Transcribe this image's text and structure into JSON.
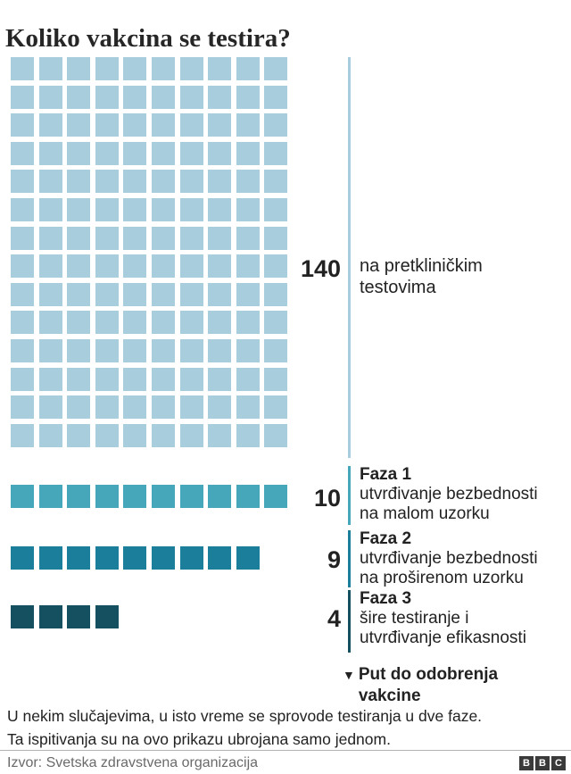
{
  "title": "Koliko vakcina se testira?",
  "colors": {
    "preclinical": "#a8cedd",
    "phase1": "#47a7ba",
    "phase2": "#1b7f9c",
    "phase3": "#14505f",
    "text": "#222222",
    "source_text": "#6a6a6a",
    "divider": "#b3b3b3",
    "logo_block": "#3a3a3a"
  },
  "chart_data": {
    "type": "waffle",
    "title": "Koliko vakcina se testira?",
    "unit": "broj vakcina",
    "columns": 10,
    "legend_position": "right",
    "groups": [
      {
        "id": "preclinical",
        "count": 140,
        "color": "#a8cedd",
        "label_lines": [
          "na pretkliničkim",
          "testovima"
        ]
      },
      {
        "id": "phase1",
        "count": 10,
        "color": "#47a7ba",
        "phase": "Faza 1",
        "desc_lines": [
          "utvrđivanje bezbednosti",
          "na malom uzorku"
        ]
      },
      {
        "id": "phase2",
        "count": 9,
        "color": "#1b7f9c",
        "phase": "Faza 2",
        "desc_lines": [
          "utvrđivanje bezbednosti",
          "na proširenom uzorku"
        ]
      },
      {
        "id": "phase3",
        "count": 4,
        "color": "#14505f",
        "phase": "Faza 3",
        "desc_lines": [
          "šire testiranje i",
          "utvrđivanje efikasnosti"
        ]
      }
    ],
    "pathway_note": {
      "marker": "▼",
      "lines": [
        "Put do odobrenja",
        "vakcine"
      ]
    }
  },
  "footnote_lines": [
    "U nekim slučajevima, u isto vreme se sprovode testiranja u dve faze.",
    "Ta ispitivanja su na ovo prikazu ubrojana samo jednom."
  ],
  "footer": {
    "source": "Izvor: Svetska zdravstvena organizacija",
    "logo": [
      "B",
      "B",
      "C"
    ]
  }
}
